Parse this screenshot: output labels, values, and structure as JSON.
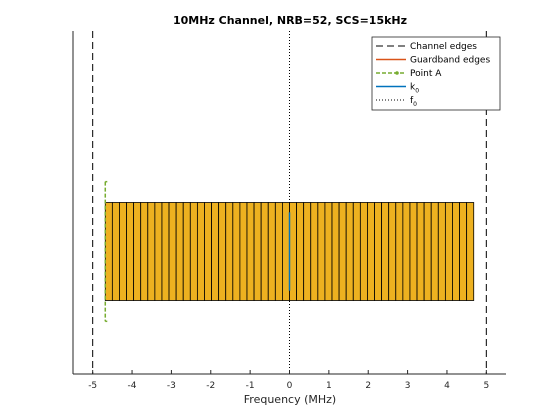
{
  "chart_data": {
    "type": "bar",
    "title": "10MHz Channel,  NRB=52, SCS=15kHz",
    "xlabel": "Frequency (MHz)",
    "ylabel": "",
    "xlim": [
      -5.5,
      5.5
    ],
    "ylim": [
      -0.6,
      2.2
    ],
    "xticks": [
      "-5",
      "-4",
      "-3",
      "-2",
      "-1",
      "0",
      "1",
      "2",
      "3",
      "4",
      "5"
    ],
    "legend": {
      "position": "top-right",
      "entries": [
        {
          "label": "Channel edges",
          "sub": ""
        },
        {
          "label": "Guardband edges",
          "sub": ""
        },
        {
          "label": "Point A",
          "sub": ""
        },
        {
          "label": "k",
          "sub": "0"
        },
        {
          "label": "f",
          "sub": "0"
        }
      ]
    },
    "channel_edges_mhz": [
      -5,
      5
    ],
    "guardband_edges_mhz": [
      -4.68,
      4.68
    ],
    "point_a_mhz": -4.68,
    "k0_mhz": 0,
    "f0_mhz": 0,
    "resource_blocks": {
      "count": 52,
      "start_mhz": -4.68,
      "width_mhz": 0.18,
      "y_range": [
        0,
        0.8
      ]
    },
    "colors": {
      "rb_fill": "#EDB120",
      "channel_edge": "#000000",
      "guardband": "#D95319",
      "point_a": "#77AC30",
      "k0": "#0072BD",
      "f0": "#000000"
    }
  }
}
